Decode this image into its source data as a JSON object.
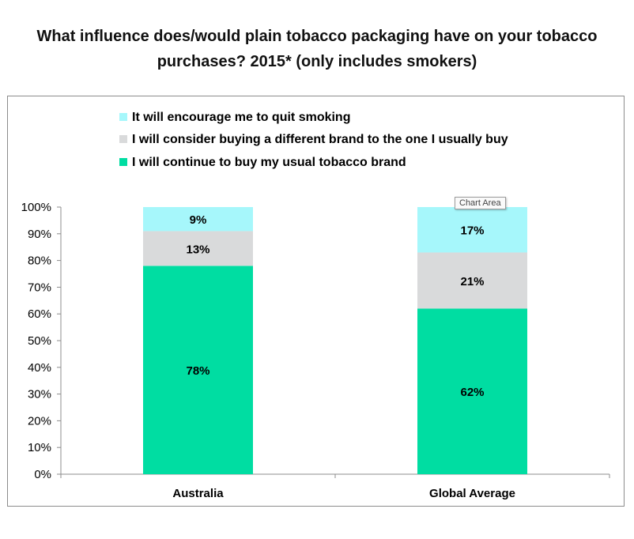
{
  "title_lines": [
    "What influence does/would plain tobacco packaging have on your tobacco",
    "purchases? 2015* (only includes smokers)"
  ],
  "tooltip": "Chart Area",
  "colors": {
    "quit": "#a6f7fb",
    "consider": "#d9dadb",
    "continue": "#00dda2"
  },
  "chart_data": {
    "type": "bar",
    "stacked": true,
    "title": "What influence does/would plain tobacco packaging have on your tobacco purchases? 2015* (only includes smokers)",
    "categories": [
      "Australia",
      "Global Average"
    ],
    "series": [
      {
        "name": "I will continue to buy my usual tobacco brand",
        "values": [
          78,
          62
        ],
        "labels": [
          "78%",
          "62%"
        ],
        "color_key": "continue"
      },
      {
        "name": "I will consider buying a different brand to the one I usually buy",
        "values": [
          13,
          21
        ],
        "labels": [
          "13%",
          "21%"
        ],
        "color_key": "consider"
      },
      {
        "name": "It will encourage me to quit smoking",
        "values": [
          9,
          17
        ],
        "labels": [
          "9%",
          "17%"
        ],
        "color_key": "quit"
      }
    ],
    "legend_order": [
      "It will encourage me to quit smoking",
      "I will consider buying a different brand to the one I usually buy",
      "I will continue to buy my usual tobacco brand"
    ],
    "legend_position": "top-left",
    "ylim": [
      0,
      100
    ],
    "yticks": [
      "0%",
      "10%",
      "20%",
      "30%",
      "40%",
      "50%",
      "60%",
      "70%",
      "80%",
      "90%",
      "100%"
    ],
    "grid": false
  }
}
